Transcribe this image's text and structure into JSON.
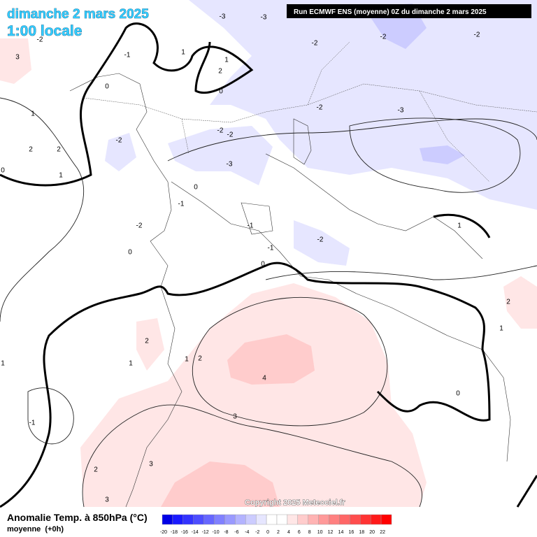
{
  "header": {
    "date": "dimanche 2 mars 2025",
    "time": "1:00 locale",
    "run": "Run ECMWF ENS (moyenne) 0Z du dimanche 2 mars 2025"
  },
  "footer": {
    "title": "Anomalie Temp. à 850hPa (°C)",
    "subtitle": "moyenne  (+0h)",
    "copyright": "Copyright 2025 Meteociel.fr"
  },
  "legend": {
    "ticks": [
      -20,
      -18,
      -16,
      -14,
      -12,
      -10,
      -8,
      -6,
      -4,
      -2,
      0,
      2,
      4,
      6,
      8,
      10,
      12,
      14,
      16,
      18,
      20,
      22
    ],
    "colors": [
      "#0000e6",
      "#1a1aff",
      "#3333ff",
      "#4d4dff",
      "#6666ff",
      "#8080ff",
      "#9999ff",
      "#b3b3ff",
      "#ccccff",
      "#e6e6ff",
      "#ffffff",
      "#ffffff",
      "#ffe6e6",
      "#ffcccc",
      "#ffb3b3",
      "#ff9999",
      "#ff8080",
      "#ff6666",
      "#ff4d4d",
      "#ff3333",
      "#ff1a1a",
      "#ff0000"
    ]
  },
  "contour_labels": [
    3,
    -2,
    1,
    2,
    2,
    1,
    0,
    0,
    -1,
    1,
    1,
    2,
    0,
    -3,
    -3,
    -2,
    -2,
    -2,
    -2,
    -3,
    -2,
    -2,
    -2,
    -3,
    0,
    -1,
    -2,
    -1,
    -2,
    -1,
    0,
    0,
    1,
    2,
    1,
    2,
    1,
    1,
    2,
    4,
    3,
    0,
    -1,
    3,
    2,
    3,
    1
  ]
}
